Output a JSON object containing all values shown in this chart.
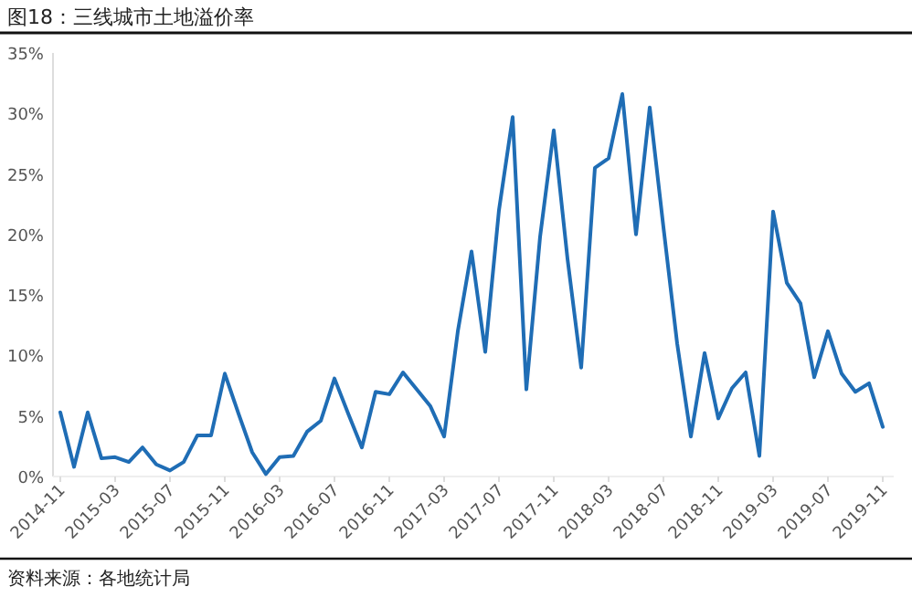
{
  "chart_data": {
    "type": "line",
    "title": "图18：三线城市土地溢价率",
    "categories": [
      "2014-11",
      null,
      null,
      null,
      "2015-03",
      null,
      null,
      null,
      "2015-07",
      null,
      null,
      null,
      "2015-11",
      null,
      null,
      null,
      "2016-03",
      null,
      null,
      null,
      "2016-07",
      null,
      null,
      null,
      "2016-11",
      null,
      null,
      null,
      "2017-03",
      null,
      null,
      null,
      "2017-07",
      null,
      null,
      null,
      "2017-11",
      null,
      null,
      null,
      "2018-03",
      null,
      null,
      null,
      "2018-07",
      null,
      null,
      null,
      "2018-11",
      null,
      null,
      null,
      "2019-03",
      null,
      null,
      null,
      "2019-07",
      null,
      null,
      null,
      "2019-11"
    ],
    "series": [
      {
        "color": "#1f6db5",
        "values": [
          5.3,
          0.8,
          5.3,
          1.5,
          1.6,
          1.2,
          2.4,
          1.0,
          0.5,
          1.2,
          3.4,
          3.4,
          8.5,
          5.2,
          2.0,
          0.2,
          1.6,
          1.7,
          3.7,
          4.6,
          8.1,
          5.2,
          2.4,
          7.0,
          6.8,
          8.6,
          7.2,
          5.8,
          3.3,
          12.0,
          18.6,
          10.3,
          22.0,
          29.7,
          7.2,
          19.8,
          28.6,
          18.0,
          9.0,
          25.5,
          26.3,
          31.6,
          20.0,
          30.5,
          20.6,
          11.0,
          3.3,
          10.2,
          4.8,
          7.3,
          8.6,
          1.7,
          21.9,
          16.0,
          14.3,
          8.2,
          12.0,
          8.5,
          7.0,
          7.7,
          4.1
        ]
      }
    ],
    "ylim": [
      0,
      35
    ],
    "yticks": [
      {
        "value": 0,
        "label": "0%"
      },
      {
        "value": 5,
        "label": "5%"
      },
      {
        "value": 10,
        "label": "10%"
      },
      {
        "value": 15,
        "label": "15%"
      },
      {
        "value": 20,
        "label": "20%"
      },
      {
        "value": 25,
        "label": "25%"
      },
      {
        "value": 30,
        "label": "30%"
      },
      {
        "value": 35,
        "label": "35%"
      }
    ],
    "grid": false,
    "annotations": [
      "资料来源：各地统计局"
    ]
  }
}
